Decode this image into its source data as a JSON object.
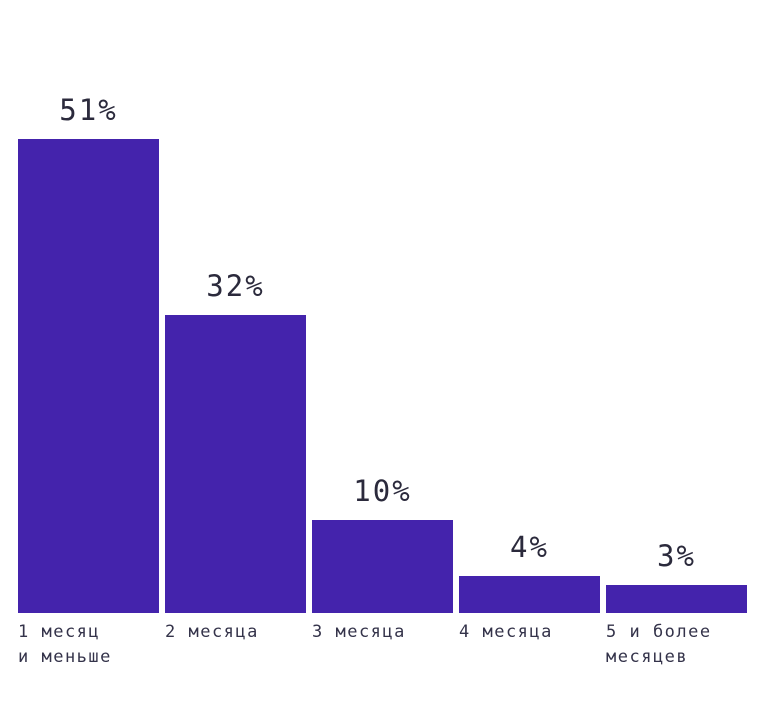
{
  "chart_data": {
    "type": "bar",
    "title": "",
    "xlabel": "",
    "ylabel": "",
    "unit": "%",
    "categories": [
      "1 месяц и меньше",
      "2 месяца",
      "3 месяца",
      "4 месяца",
      "5 и более месяцев"
    ],
    "category_lines": [
      [
        "1 месяц",
        "и меньше"
      ],
      [
        "2 месяца"
      ],
      [
        "3 месяца"
      ],
      [
        "4 месяца"
      ],
      [
        "5 и более",
        "месяцев"
      ]
    ],
    "values": [
      51,
      32,
      10,
      4,
      3
    ],
    "value_labels": [
      "51%",
      "32%",
      "10%",
      "4%",
      "3%"
    ],
    "ylim": [
      0,
      60
    ],
    "grid": false,
    "legend": false,
    "axis_lines": "none",
    "bar_color": "#4423ac",
    "value_label_color": "#2b2a3c",
    "category_label_color": "#34334a",
    "background_color": "#ffffff"
  }
}
